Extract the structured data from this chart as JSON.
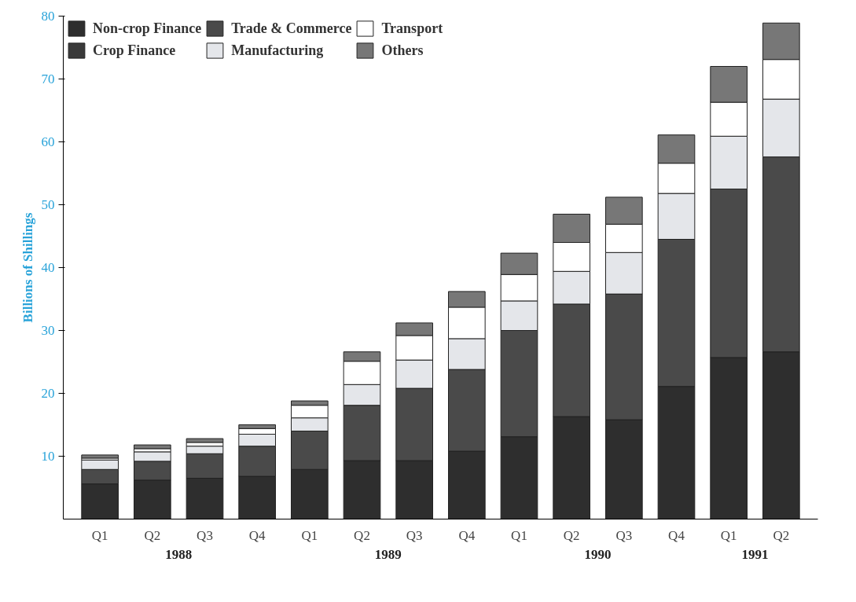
{
  "chart_data": {
    "type": "bar",
    "stacked": true,
    "ylabel": "Billions of Shillings",
    "categories": [
      "Q1",
      "Q2",
      "Q3",
      "Q4",
      "Q1",
      "Q2",
      "Q3",
      "Q4",
      "Q1",
      "Q2",
      "Q3",
      "Q4",
      "Q1",
      "Q2"
    ],
    "annotations": [
      "1988",
      "1989",
      "1990",
      "1991"
    ],
    "series": [
      {
        "name": "Non-crop Finance",
        "color": "#2e2e2e",
        "values": [
          5.6,
          6.2,
          6.5,
          6.8,
          7.9,
          9.3,
          9.3,
          10.8,
          13.1,
          16.3,
          15.8,
          21.1,
          25.7,
          26.6
        ]
      },
      {
        "name": "Crop Finance",
        "color": "#3a3a3a",
        "values": [
          null,
          null,
          null,
          null,
          null,
          null,
          null,
          null,
          null,
          null,
          null,
          null,
          null,
          null
        ]
      },
      {
        "name": "Trade & Commerce",
        "color": "#4a4a4a",
        "values": [
          2.3,
          3.0,
          3.9,
          4.8,
          6.1,
          8.8,
          11.5,
          13.0,
          16.9,
          17.9,
          20.0,
          23.4,
          26.8,
          31.0
        ]
      },
      {
        "name": "Manufacturing",
        "color": "#e4e6ea",
        "values": [
          1.5,
          1.5,
          1.2,
          1.9,
          2.1,
          3.3,
          4.5,
          4.9,
          4.7,
          5.2,
          6.6,
          7.3,
          8.4,
          9.2
        ]
      },
      {
        "name": "Transport",
        "color": "#ffffff",
        "values": [
          0.3,
          0.5,
          0.6,
          0.9,
          2.0,
          3.7,
          3.9,
          5.0,
          4.2,
          4.6,
          4.5,
          4.8,
          5.4,
          6.3
        ]
      },
      {
        "name": "Others",
        "color": "#777777",
        "values": [
          0.5,
          0.6,
          0.6,
          0.6,
          0.7,
          1.5,
          2.0,
          2.5,
          3.4,
          4.5,
          4.3,
          4.5,
          5.7,
          5.8
        ]
      }
    ],
    "ylim": [
      0,
      80
    ],
    "yticks": [
      10,
      20,
      30,
      40,
      50,
      60,
      70,
      80
    ],
    "grid": false,
    "legend": "top left"
  }
}
